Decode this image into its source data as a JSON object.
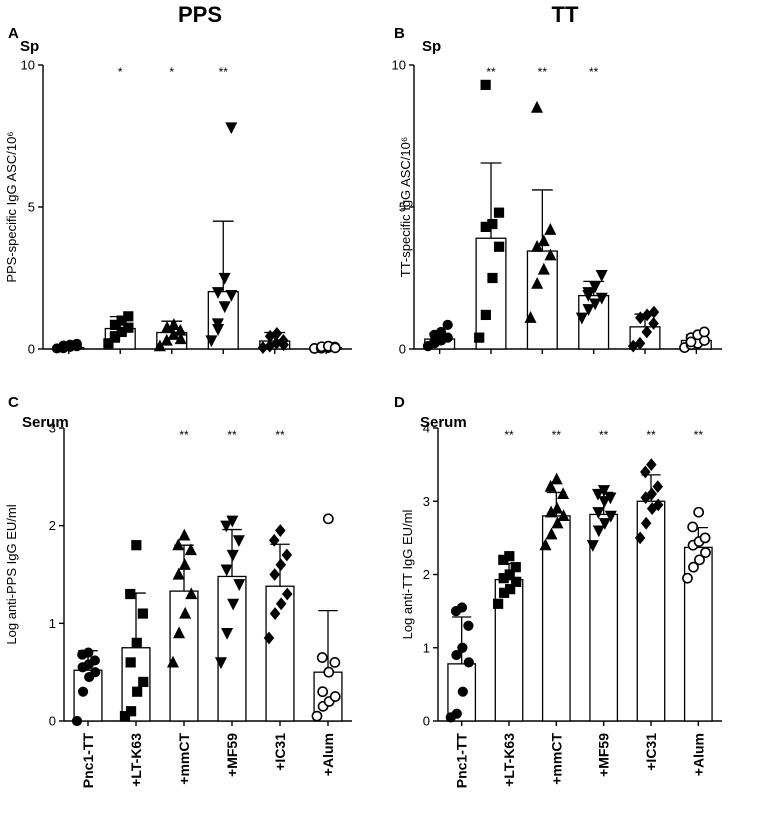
{
  "figure": {
    "columns": [
      "PPS",
      "TT"
    ],
    "categories": [
      "Pnc1-TT",
      "+LT-K63",
      "+mmCT",
      "+MF59",
      "+IC31",
      "+Alum"
    ],
    "markers": [
      "circle",
      "square",
      "triangle",
      "triangle-down",
      "diamond",
      "open-circle"
    ]
  },
  "chart_data": [
    {
      "panel": "A",
      "subtitle": "Sp",
      "type": "bar",
      "ylabel": "PPS-specific IgG ASC/10⁶",
      "ylim": [
        0,
        10
      ],
      "yticks": [
        0,
        5,
        10
      ],
      "categories": [
        "Pnc1-TT",
        "+LT-K63",
        "+mmCT",
        "+MF59",
        "+IC31",
        "+Alum"
      ],
      "values": [
        0.05,
        0.72,
        0.58,
        2.02,
        0.28,
        0.05
      ],
      "error": [
        0.1,
        0.42,
        0.4,
        2.48,
        0.3,
        0.07
      ],
      "significance": [
        "",
        "*",
        "*",
        "**",
        "",
        ""
      ],
      "points": [
        [
          0.02,
          0.05,
          0.08,
          0.1,
          0.12,
          0.15,
          0.18,
          0.03
        ],
        [
          0.2,
          0.45,
          0.6,
          0.75,
          0.85,
          1.0,
          1.15,
          0.4
        ],
        [
          0.1,
          0.3,
          0.5,
          0.65,
          0.75,
          0.85,
          0.35
        ],
        [
          0.3,
          0.7,
          1.5,
          1.9,
          2.0,
          2.5,
          7.8,
          0.9
        ],
        [
          0.05,
          0.1,
          0.2,
          0.3,
          0.45,
          0.55,
          0.15
        ],
        [
          0.02,
          0.03,
          0.05,
          0.07,
          0.08,
          0.1,
          0.04
        ]
      ]
    },
    {
      "panel": "B",
      "subtitle": "Sp",
      "type": "bar",
      "ylabel": "TT-specific IgG ASC/10⁶",
      "ylim": [
        0,
        10
      ],
      "yticks": [
        0,
        5,
        10
      ],
      "categories": [
        "Pnc1-TT",
        "+LT-K63",
        "+mmCT",
        "+MF59",
        "+IC31",
        "+Alum"
      ],
      "values": [
        0.35,
        3.9,
        3.45,
        1.88,
        0.78,
        0.3
      ],
      "error": [
        0.2,
        2.65,
        2.15,
        0.5,
        0.45,
        0.2
      ],
      "significance": [
        "",
        "**",
        "**",
        "**",
        "",
        ""
      ],
      "points": [
        [
          0.1,
          0.2,
          0.3,
          0.4,
          0.5,
          0.6,
          0.85,
          0.25
        ],
        [
          0.4,
          1.2,
          2.5,
          3.6,
          4.3,
          4.4,
          4.8,
          9.3
        ],
        [
          1.1,
          2.3,
          2.8,
          3.3,
          3.6,
          3.8,
          4.2,
          8.5
        ],
        [
          1.1,
          1.4,
          1.6,
          1.8,
          2.0,
          2.2,
          2.6,
          1.9
        ],
        [
          0.1,
          0.2,
          0.6,
          0.9,
          1.1,
          1.2,
          1.3
        ],
        [
          0.05,
          0.15,
          0.2,
          0.3,
          0.4,
          0.5,
          0.6,
          0.25
        ]
      ]
    },
    {
      "panel": "C",
      "subtitle": "Serum",
      "type": "bar",
      "ylabel": "Log anti-PPS IgG EU/ml",
      "ylim": [
        0,
        3
      ],
      "yticks": [
        0,
        1,
        2,
        3
      ],
      "categories": [
        "Pnc1-TT",
        "+LT-K63",
        "+mmCT",
        "+MF59",
        "+IC31",
        "+Alum"
      ],
      "values": [
        0.52,
        0.75,
        1.33,
        1.48,
        1.38,
        0.5
      ],
      "error": [
        0.2,
        0.56,
        0.47,
        0.48,
        0.43,
        0.63
      ],
      "significance": [
        "",
        "",
        "**",
        "**",
        "**",
        ""
      ],
      "points": [
        [
          0.0,
          0.3,
          0.45,
          0.5,
          0.55,
          0.58,
          0.62,
          0.68,
          0.7
        ],
        [
          0.05,
          0.1,
          0.3,
          0.4,
          0.6,
          0.8,
          1.1,
          1.3,
          1.8
        ],
        [
          0.6,
          0.9,
          1.1,
          1.3,
          1.5,
          1.6,
          1.75,
          1.8,
          1.9
        ],
        [
          0.6,
          0.9,
          1.2,
          1.4,
          1.55,
          1.7,
          1.85,
          2.0,
          2.05
        ],
        [
          0.85,
          1.1,
          1.2,
          1.3,
          1.5,
          1.6,
          1.7,
          1.85,
          1.95
        ],
        [
          0.05,
          0.15,
          0.2,
          0.25,
          0.3,
          0.5,
          0.6,
          0.65,
          2.07
        ]
      ]
    },
    {
      "panel": "D",
      "subtitle": "Serum",
      "type": "bar",
      "ylabel": "Log anti-TT IgG EU/ml",
      "ylim": [
        0,
        4
      ],
      "yticks": [
        0,
        1,
        2,
        3,
        4
      ],
      "categories": [
        "Pnc1-TT",
        "+LT-K63",
        "+mmCT",
        "+MF59",
        "+IC31",
        "+Alum"
      ],
      "values": [
        0.78,
        1.93,
        2.8,
        2.82,
        3.0,
        2.37
      ],
      "error": [
        0.64,
        0.22,
        0.32,
        0.3,
        0.36,
        0.27
      ],
      "significance": [
        "",
        "**",
        "**",
        "**",
        "**",
        "**"
      ],
      "points": [
        [
          0.05,
          0.1,
          0.4,
          0.8,
          0.9,
          1.0,
          1.3,
          1.5,
          1.55
        ],
        [
          1.6,
          1.75,
          1.8,
          1.9,
          1.95,
          2.0,
          2.1,
          2.2,
          2.25
        ],
        [
          2.4,
          2.55,
          2.7,
          2.8,
          2.85,
          2.9,
          3.1,
          3.2,
          3.3
        ],
        [
          2.4,
          2.6,
          2.7,
          2.8,
          2.85,
          3.0,
          3.05,
          3.1,
          3.15
        ],
        [
          2.5,
          2.7,
          2.9,
          2.95,
          3.05,
          3.1,
          3.2,
          3.4,
          3.5
        ],
        [
          1.95,
          2.1,
          2.2,
          2.3,
          2.4,
          2.45,
          2.5,
          2.65,
          2.85
        ]
      ]
    }
  ]
}
